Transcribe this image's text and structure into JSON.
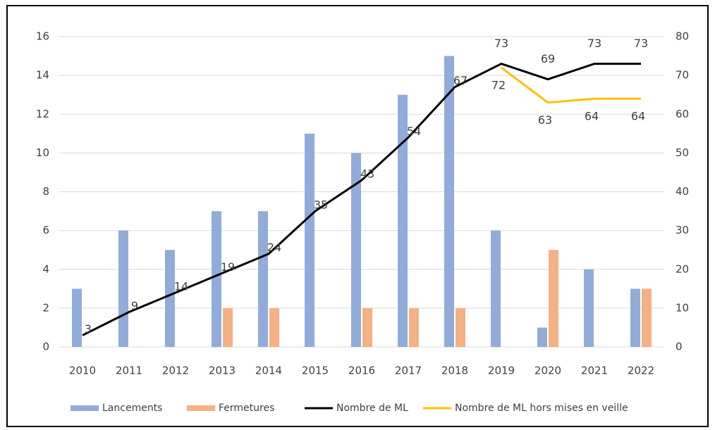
{
  "chart_data": {
    "type": "bar-line",
    "categories": [
      "2010",
      "2011",
      "2012",
      "2013",
      "2014",
      "2015",
      "2016",
      "2017",
      "2018",
      "2019",
      "2020",
      "2021",
      "2022"
    ],
    "series": [
      {
        "name": "Lancements",
        "type": "bar",
        "color": "#91acd8",
        "values": [
          3,
          6,
          5,
          7,
          7,
          11,
          10,
          13,
          15,
          6,
          1,
          4,
          3
        ]
      },
      {
        "name": "Fermetures",
        "type": "bar",
        "color": "#f4b183",
        "values": [
          0,
          0,
          0,
          2,
          2,
          0,
          2,
          2,
          2,
          0,
          5,
          0,
          3
        ]
      },
      {
        "name": "Nombre de ML",
        "type": "line",
        "axis": "y2",
        "color": "#000000",
        "values": [
          3,
          9,
          14,
          19,
          24,
          35,
          43,
          54,
          67,
          73,
          69,
          73,
          73
        ]
      },
      {
        "name": "Nombre de ML hors mises en veille",
        "type": "line",
        "axis": "y2",
        "color": "#ffc000",
        "values": [
          null,
          null,
          null,
          null,
          null,
          null,
          null,
          null,
          null,
          72,
          63,
          64,
          64
        ]
      }
    ],
    "ylim": [
      0,
      16
    ],
    "yticks": [
      0,
      2,
      4,
      6,
      8,
      10,
      12,
      14,
      16
    ],
    "y2lim": [
      0,
      80
    ],
    "y2ticks": [
      0,
      10,
      20,
      30,
      40,
      50,
      60,
      70,
      80
    ],
    "grid": true,
    "legend": "bottom"
  }
}
